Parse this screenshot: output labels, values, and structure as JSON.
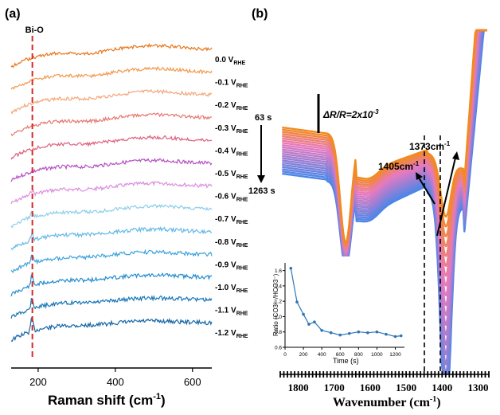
{
  "panel_a_label": "(a)",
  "panel_b_label": "(b)",
  "chart_data": [
    {
      "type": "line",
      "panel": "(a)",
      "xlabel": "Raman shift (cm",
      "xlabel_sup": "-1",
      "xlabel_close": ")",
      "xlim": [
        130,
        650
      ],
      "xticks": [
        "200",
        "400",
        "600"
      ],
      "xtick_values": [
        200,
        400,
        600
      ],
      "marker": {
        "label": "Bi-O",
        "x": 185,
        "color": "#d62728"
      },
      "series": [
        {
          "name": "0.0 V",
          "sub": "RHE",
          "color": "#e8761a",
          "seed": 1
        },
        {
          "name": "-0.1 V",
          "sub": "RHE",
          "color": "#f09a4c",
          "seed": 2
        },
        {
          "name": "-0.2 V",
          "sub": "RHE",
          "color": "#f3a77a",
          "seed": 3
        },
        {
          "name": "-0.3 V",
          "sub": "RHE",
          "color": "#e6776f",
          "seed": 4
        },
        {
          "name": "-0.4 V",
          "sub": "RHE",
          "color": "#de5f7e",
          "seed": 5
        },
        {
          "name": "-0.5 V",
          "sub": "RHE",
          "color": "#b64fc4",
          "seed": 6
        },
        {
          "name": "-0.6 V",
          "sub": "RHE",
          "color": "#dc8fe0",
          "seed": 7
        },
        {
          "name": "-0.7 V",
          "sub": "RHE",
          "color": "#8ecfea",
          "seed": 8
        },
        {
          "name": "-0.8 V",
          "sub": "RHE",
          "color": "#62b8e6",
          "seed": 9
        },
        {
          "name": "-0.9 V",
          "sub": "RHE",
          "color": "#3ea3de",
          "seed": 10
        },
        {
          "name": "-1.0 V",
          "sub": "RHE",
          "color": "#238dcd",
          "seed": 11
        },
        {
          "name": "-1.1 V",
          "sub": "RHE",
          "color": "#1877b8",
          "seed": 12
        },
        {
          "name": "-1.2 V",
          "sub": "RHE",
          "color": "#1566a6",
          "seed": 13
        }
      ]
    },
    {
      "type": "line",
      "panel": "(b)",
      "xlabel": "Wavenumber (cm",
      "xlabel_sup": "-1",
      "xlabel_close": ")",
      "xlim": [
        1850,
        1270
      ],
      "xticks": [
        "1800",
        "1700",
        "1600",
        "1500",
        "1400",
        "1300"
      ],
      "xtick_values": [
        1800,
        1700,
        1600,
        1500,
        1400,
        1300
      ],
      "series_count": 22,
      "series_color_start": "#f28a1e",
      "series_color_mid": "#e879c0",
      "series_color_end": "#4a86e8",
      "scale_bar": {
        "text": "ΔR/R=2x10",
        "sup": "-3"
      },
      "time_start": "63 s",
      "time_end": "1263 s",
      "annotations": [
        {
          "text": "1405cm",
          "sup": "-1"
        },
        {
          "text": "1373cm",
          "sup": "-1"
        }
      ],
      "inset": {
        "type": "line",
        "xlabel": "Time (s)",
        "ylabel": "Ratio (CO3²⁻/HCO3⁻)",
        "xlim": [
          0,
          1300
        ],
        "ylim": [
          0.6,
          1.7
        ],
        "xticks": [
          "0",
          "200",
          "400",
          "600",
          "800",
          "1000",
          "1200"
        ],
        "xtick_values": [
          0,
          200,
          400,
          600,
          800,
          1000,
          1200
        ],
        "yticks": [
          "0.6",
          "0.8",
          "1.0",
          "1.2",
          "1.4",
          "1.6"
        ],
        "ytick_values": [
          0.6,
          0.8,
          1.0,
          1.2,
          1.4,
          1.6
        ],
        "x": [
          63,
          130,
          200,
          260,
          320,
          400,
          500,
          600,
          700,
          800,
          900,
          1000,
          1100,
          1200,
          1263
        ],
        "y": [
          1.63,
          1.19,
          1.03,
          0.9,
          0.93,
          0.82,
          0.79,
          0.76,
          0.78,
          0.8,
          0.79,
          0.8,
          0.77,
          0.74,
          0.75
        ],
        "color": "#2e75b6"
      }
    }
  ]
}
